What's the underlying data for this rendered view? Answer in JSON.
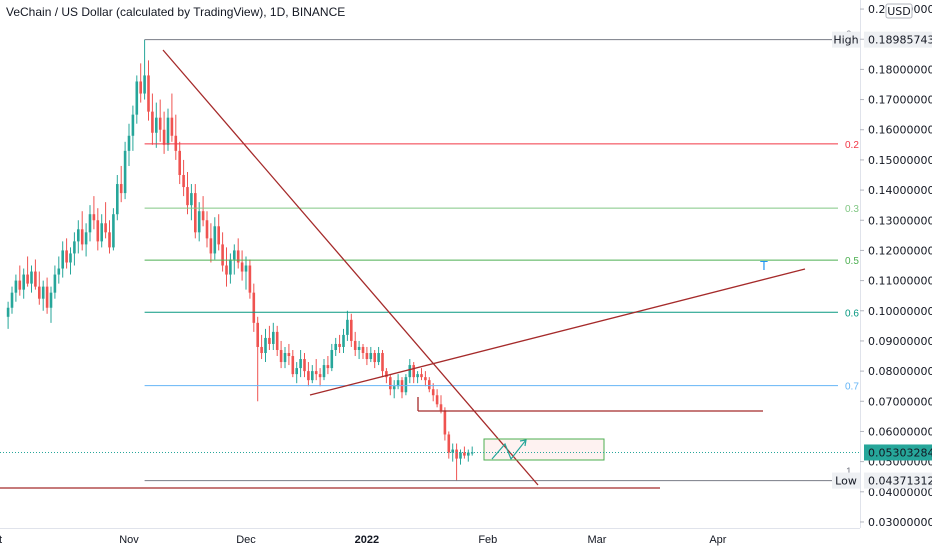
{
  "chart_data": {
    "type": "candlestick",
    "title": "VeChain / US Dollar (calculated by TradingView), 1D, BINANCE",
    "currency": "USD",
    "ylim": [
      0.028,
      0.203
    ],
    "y_ticks": [
      "0.20000000",
      "0.19000000",
      "0.18000000",
      "0.17000000",
      "0.16000000",
      "0.15000000",
      "0.14000000",
      "0.13000000",
      "0.12000000",
      "0.11000000",
      "0.10000000",
      "0.09000000",
      "0.08000000",
      "0.07000000",
      "0.06000000",
      "0.05000000",
      "0.04000000",
      "0.03000000"
    ],
    "x_ticks": [
      "Oct",
      "Nov",
      "Dec",
      "2022",
      "Feb",
      "Mar",
      "Apr"
    ],
    "bold_x_ticks": [
      "2022"
    ],
    "colors": {
      "up": "#26a69a",
      "down": "#ef5350",
      "trend": "#a52a2a",
      "last_price": "#26a69a"
    },
    "high_label": "High",
    "high_value": "0.18985743",
    "low_label": "Low",
    "low_value": "0.04371312",
    "last_price_value": "0.05303284",
    "fib_levels": [
      {
        "label": "0",
        "price": 0.18985743,
        "color": "#787b86"
      },
      {
        "label": "0.2",
        "price": 0.1553,
        "color": "#f23645"
      },
      {
        "label": "0.3",
        "price": 0.134,
        "color": "#81c784"
      },
      {
        "label": "0.5",
        "price": 0.1168,
        "color": "#4caf50"
      },
      {
        "label": "0.6",
        "price": 0.0995,
        "color": "#089981"
      },
      {
        "label": "0.7",
        "price": 0.0752,
        "color": "#64b5f6"
      },
      {
        "label": "1",
        "price": 0.04371312,
        "color": "#787b86"
      }
    ],
    "annotation_T": "T",
    "candles": [
      {
        "date": "2021-10-01",
        "o": 0.098,
        "h": 0.103,
        "l": 0.094,
        "c": 0.101
      },
      {
        "date": "2021-10-02",
        "o": 0.101,
        "h": 0.108,
        "l": 0.099,
        "c": 0.106
      },
      {
        "date": "2021-10-03",
        "o": 0.106,
        "h": 0.112,
        "l": 0.103,
        "c": 0.11
      },
      {
        "date": "2021-10-04",
        "o": 0.11,
        "h": 0.115,
        "l": 0.105,
        "c": 0.107
      },
      {
        "date": "2021-10-05",
        "o": 0.107,
        "h": 0.114,
        "l": 0.104,
        "c": 0.112
      },
      {
        "date": "2021-10-06",
        "o": 0.112,
        "h": 0.118,
        "l": 0.108,
        "c": 0.109
      },
      {
        "date": "2021-10-07",
        "o": 0.109,
        "h": 0.115,
        "l": 0.106,
        "c": 0.113
      },
      {
        "date": "2021-10-08",
        "o": 0.113,
        "h": 0.117,
        "l": 0.107,
        "c": 0.108
      },
      {
        "date": "2021-10-09",
        "o": 0.108,
        "h": 0.113,
        "l": 0.102,
        "c": 0.104
      },
      {
        "date": "2021-10-10",
        "o": 0.104,
        "h": 0.11,
        "l": 0.1,
        "c": 0.108
      },
      {
        "date": "2021-10-11",
        "o": 0.108,
        "h": 0.111,
        "l": 0.099,
        "c": 0.101
      },
      {
        "date": "2021-10-12",
        "o": 0.101,
        "h": 0.108,
        "l": 0.096,
        "c": 0.106
      },
      {
        "date": "2021-10-13",
        "o": 0.106,
        "h": 0.115,
        "l": 0.104,
        "c": 0.112
      },
      {
        "date": "2021-10-14",
        "o": 0.112,
        "h": 0.118,
        "l": 0.109,
        "c": 0.114
      },
      {
        "date": "2021-10-15",
        "o": 0.114,
        "h": 0.123,
        "l": 0.111,
        "c": 0.12
      },
      {
        "date": "2021-10-16",
        "o": 0.12,
        "h": 0.124,
        "l": 0.114,
        "c": 0.116
      },
      {
        "date": "2021-10-17",
        "o": 0.116,
        "h": 0.121,
        "l": 0.112,
        "c": 0.119
      },
      {
        "date": "2021-10-18",
        "o": 0.119,
        "h": 0.126,
        "l": 0.115,
        "c": 0.123
      },
      {
        "date": "2021-10-19",
        "o": 0.123,
        "h": 0.13,
        "l": 0.119,
        "c": 0.127
      },
      {
        "date": "2021-10-20",
        "o": 0.127,
        "h": 0.133,
        "l": 0.12,
        "c": 0.122
      },
      {
        "date": "2021-10-21",
        "o": 0.122,
        "h": 0.129,
        "l": 0.118,
        "c": 0.126
      },
      {
        "date": "2021-10-22",
        "o": 0.126,
        "h": 0.135,
        "l": 0.123,
        "c": 0.132
      },
      {
        "date": "2021-10-23",
        "o": 0.132,
        "h": 0.138,
        "l": 0.127,
        "c": 0.13
      },
      {
        "date": "2021-10-24",
        "o": 0.13,
        "h": 0.134,
        "l": 0.12,
        "c": 0.123
      },
      {
        "date": "2021-10-25",
        "o": 0.123,
        "h": 0.132,
        "l": 0.121,
        "c": 0.129
      },
      {
        "date": "2021-10-26",
        "o": 0.129,
        "h": 0.136,
        "l": 0.124,
        "c": 0.126
      },
      {
        "date": "2021-10-27",
        "o": 0.126,
        "h": 0.13,
        "l": 0.119,
        "c": 0.121
      },
      {
        "date": "2021-10-28",
        "o": 0.121,
        "h": 0.134,
        "l": 0.12,
        "c": 0.132
      },
      {
        "date": "2021-10-29",
        "o": 0.132,
        "h": 0.145,
        "l": 0.13,
        "c": 0.142
      },
      {
        "date": "2021-10-30",
        "o": 0.142,
        "h": 0.148,
        "l": 0.136,
        "c": 0.139
      },
      {
        "date": "2021-10-31",
        "o": 0.139,
        "h": 0.156,
        "l": 0.137,
        "c": 0.153
      },
      {
        "date": "2021-11-01",
        "o": 0.153,
        "h": 0.162,
        "l": 0.148,
        "c": 0.158
      },
      {
        "date": "2021-11-02",
        "o": 0.158,
        "h": 0.168,
        "l": 0.153,
        "c": 0.165
      },
      {
        "date": "2021-11-03",
        "o": 0.165,
        "h": 0.178,
        "l": 0.162,
        "c": 0.176
      },
      {
        "date": "2021-11-04",
        "o": 0.176,
        "h": 0.182,
        "l": 0.169,
        "c": 0.172
      },
      {
        "date": "2021-11-05",
        "o": 0.172,
        "h": 0.18985743,
        "l": 0.17,
        "c": 0.178
      },
      {
        "date": "2021-11-06",
        "o": 0.178,
        "h": 0.183,
        "l": 0.163,
        "c": 0.166
      },
      {
        "date": "2021-11-07",
        "o": 0.166,
        "h": 0.172,
        "l": 0.155,
        "c": 0.159
      },
      {
        "date": "2021-11-08",
        "o": 0.159,
        "h": 0.169,
        "l": 0.154,
        "c": 0.164
      },
      {
        "date": "2021-11-09",
        "o": 0.164,
        "h": 0.17,
        "l": 0.156,
        "c": 0.16
      },
      {
        "date": "2021-11-10",
        "o": 0.16,
        "h": 0.166,
        "l": 0.152,
        "c": 0.155
      },
      {
        "date": "2021-11-11",
        "o": 0.155,
        "h": 0.167,
        "l": 0.153,
        "c": 0.164
      },
      {
        "date": "2021-11-12",
        "o": 0.164,
        "h": 0.172,
        "l": 0.156,
        "c": 0.158
      },
      {
        "date": "2021-11-13",
        "o": 0.158,
        "h": 0.165,
        "l": 0.15,
        "c": 0.153
      },
      {
        "date": "2021-11-14",
        "o": 0.153,
        "h": 0.156,
        "l": 0.142,
        "c": 0.145
      },
      {
        "date": "2021-11-15",
        "o": 0.145,
        "h": 0.15,
        "l": 0.138,
        "c": 0.141
      },
      {
        "date": "2021-11-16",
        "o": 0.141,
        "h": 0.146,
        "l": 0.132,
        "c": 0.135
      },
      {
        "date": "2021-11-17",
        "o": 0.135,
        "h": 0.142,
        "l": 0.13,
        "c": 0.139
      },
      {
        "date": "2021-11-18",
        "o": 0.139,
        "h": 0.142,
        "l": 0.124,
        "c": 0.126
      },
      {
        "date": "2021-11-19",
        "o": 0.126,
        "h": 0.136,
        "l": 0.123,
        "c": 0.133
      },
      {
        "date": "2021-11-20",
        "o": 0.133,
        "h": 0.138,
        "l": 0.128,
        "c": 0.13
      },
      {
        "date": "2021-11-21",
        "o": 0.13,
        "h": 0.133,
        "l": 0.121,
        "c": 0.124
      },
      {
        "date": "2021-11-22",
        "o": 0.124,
        "h": 0.129,
        "l": 0.116,
        "c": 0.119
      },
      {
        "date": "2021-11-23",
        "o": 0.119,
        "h": 0.131,
        "l": 0.117,
        "c": 0.128
      },
      {
        "date": "2021-11-24",
        "o": 0.128,
        "h": 0.132,
        "l": 0.12,
        "c": 0.122
      },
      {
        "date": "2021-11-25",
        "o": 0.122,
        "h": 0.126,
        "l": 0.113,
        "c": 0.115
      },
      {
        "date": "2021-11-26",
        "o": 0.115,
        "h": 0.121,
        "l": 0.108,
        "c": 0.112
      },
      {
        "date": "2021-11-27",
        "o": 0.112,
        "h": 0.119,
        "l": 0.109,
        "c": 0.117
      },
      {
        "date": "2021-11-28",
        "o": 0.117,
        "h": 0.122,
        "l": 0.112,
        "c": 0.12
      },
      {
        "date": "2021-11-29",
        "o": 0.12,
        "h": 0.124,
        "l": 0.114,
        "c": 0.116
      },
      {
        "date": "2021-11-30",
        "o": 0.116,
        "h": 0.12,
        "l": 0.11,
        "c": 0.113
      },
      {
        "date": "2021-12-01",
        "o": 0.113,
        "h": 0.118,
        "l": 0.107,
        "c": 0.115
      },
      {
        "date": "2021-12-02",
        "o": 0.115,
        "h": 0.117,
        "l": 0.104,
        "c": 0.106
      },
      {
        "date": "2021-12-03",
        "o": 0.106,
        "h": 0.109,
        "l": 0.093,
        "c": 0.096
      },
      {
        "date": "2021-12-04",
        "o": 0.096,
        "h": 0.098,
        "l": 0.07,
        "c": 0.088
      },
      {
        "date": "2021-12-05",
        "o": 0.088,
        "h": 0.092,
        "l": 0.084,
        "c": 0.086
      },
      {
        "date": "2021-12-06",
        "o": 0.086,
        "h": 0.094,
        "l": 0.083,
        "c": 0.091
      },
      {
        "date": "2021-12-07",
        "o": 0.091,
        "h": 0.095,
        "l": 0.087,
        "c": 0.089
      },
      {
        "date": "2021-12-08",
        "o": 0.089,
        "h": 0.096,
        "l": 0.087,
        "c": 0.093
      },
      {
        "date": "2021-12-09",
        "o": 0.093,
        "h": 0.095,
        "l": 0.085,
        "c": 0.087
      },
      {
        "date": "2021-12-10",
        "o": 0.087,
        "h": 0.09,
        "l": 0.081,
        "c": 0.083
      },
      {
        "date": "2021-12-11",
        "o": 0.083,
        "h": 0.088,
        "l": 0.081,
        "c": 0.086
      },
      {
        "date": "2021-12-12",
        "o": 0.086,
        "h": 0.089,
        "l": 0.082,
        "c": 0.085
      },
      {
        "date": "2021-12-13",
        "o": 0.085,
        "h": 0.087,
        "l": 0.078,
        "c": 0.079
      },
      {
        "date": "2021-12-14",
        "o": 0.079,
        "h": 0.083,
        "l": 0.076,
        "c": 0.081
      },
      {
        "date": "2021-12-15",
        "o": 0.081,
        "h": 0.087,
        "l": 0.078,
        "c": 0.084
      },
      {
        "date": "2021-12-16",
        "o": 0.084,
        "h": 0.086,
        "l": 0.078,
        "c": 0.08
      },
      {
        "date": "2021-12-17",
        "o": 0.08,
        "h": 0.083,
        "l": 0.075,
        "c": 0.077
      },
      {
        "date": "2021-12-18",
        "o": 0.077,
        "h": 0.082,
        "l": 0.076,
        "c": 0.08
      },
      {
        "date": "2021-12-19",
        "o": 0.08,
        "h": 0.084,
        "l": 0.077,
        "c": 0.079
      },
      {
        "date": "2021-12-20",
        "o": 0.079,
        "h": 0.081,
        "l": 0.075,
        "c": 0.078
      },
      {
        "date": "2021-12-21",
        "o": 0.078,
        "h": 0.084,
        "l": 0.077,
        "c": 0.082
      },
      {
        "date": "2021-12-22",
        "o": 0.082,
        "h": 0.085,
        "l": 0.079,
        "c": 0.081
      },
      {
        "date": "2021-12-23",
        "o": 0.081,
        "h": 0.089,
        "l": 0.08,
        "c": 0.087
      },
      {
        "date": "2021-12-24",
        "o": 0.087,
        "h": 0.091,
        "l": 0.085,
        "c": 0.089
      },
      {
        "date": "2021-12-25",
        "o": 0.089,
        "h": 0.092,
        "l": 0.086,
        "c": 0.088
      },
      {
        "date": "2021-12-26",
        "o": 0.088,
        "h": 0.094,
        "l": 0.086,
        "c": 0.092
      },
      {
        "date": "2021-12-27",
        "o": 0.092,
        "h": 0.1,
        "l": 0.09,
        "c": 0.097
      },
      {
        "date": "2021-12-28",
        "o": 0.097,
        "h": 0.099,
        "l": 0.088,
        "c": 0.09
      },
      {
        "date": "2021-12-29",
        "o": 0.09,
        "h": 0.093,
        "l": 0.085,
        "c": 0.087
      },
      {
        "date": "2021-12-30",
        "o": 0.087,
        "h": 0.09,
        "l": 0.084,
        "c": 0.088
      },
      {
        "date": "2021-12-31",
        "o": 0.088,
        "h": 0.089,
        "l": 0.084,
        "c": 0.086
      },
      {
        "date": "2022-01-01",
        "o": 0.086,
        "h": 0.088,
        "l": 0.082,
        "c": 0.084
      },
      {
        "date": "2022-01-02",
        "o": 0.084,
        "h": 0.088,
        "l": 0.083,
        "c": 0.086
      },
      {
        "date": "2022-01-03",
        "o": 0.086,
        "h": 0.087,
        "l": 0.081,
        "c": 0.083
      },
      {
        "date": "2022-01-04",
        "o": 0.083,
        "h": 0.088,
        "l": 0.082,
        "c": 0.086
      },
      {
        "date": "2022-01-05",
        "o": 0.086,
        "h": 0.087,
        "l": 0.078,
        "c": 0.08
      },
      {
        "date": "2022-01-06",
        "o": 0.08,
        "h": 0.081,
        "l": 0.076,
        "c": 0.078
      },
      {
        "date": "2022-01-07",
        "o": 0.078,
        "h": 0.079,
        "l": 0.072,
        "c": 0.074
      },
      {
        "date": "2022-01-08",
        "o": 0.074,
        "h": 0.077,
        "l": 0.071,
        "c": 0.075
      },
      {
        "date": "2022-01-09",
        "o": 0.075,
        "h": 0.079,
        "l": 0.074,
        "c": 0.077
      },
      {
        "date": "2022-01-10",
        "o": 0.077,
        "h": 0.078,
        "l": 0.071,
        "c": 0.073
      },
      {
        "date": "2022-01-11",
        "o": 0.073,
        "h": 0.079,
        "l": 0.072,
        "c": 0.078
      },
      {
        "date": "2022-01-12",
        "o": 0.078,
        "h": 0.084,
        "l": 0.076,
        "c": 0.082
      },
      {
        "date": "2022-01-13",
        "o": 0.082,
        "h": 0.083,
        "l": 0.076,
        "c": 0.078
      },
      {
        "date": "2022-01-14",
        "o": 0.078,
        "h": 0.08,
        "l": 0.076,
        "c": 0.079
      },
      {
        "date": "2022-01-15",
        "o": 0.079,
        "h": 0.081,
        "l": 0.077,
        "c": 0.078
      },
      {
        "date": "2022-01-16",
        "o": 0.078,
        "h": 0.08,
        "l": 0.075,
        "c": 0.077
      },
      {
        "date": "2022-01-17",
        "o": 0.077,
        "h": 0.078,
        "l": 0.073,
        "c": 0.074
      },
      {
        "date": "2022-01-18",
        "o": 0.074,
        "h": 0.076,
        "l": 0.07,
        "c": 0.072
      },
      {
        "date": "2022-01-19",
        "o": 0.072,
        "h": 0.074,
        "l": 0.068,
        "c": 0.069
      },
      {
        "date": "2022-01-20",
        "o": 0.069,
        "h": 0.072,
        "l": 0.066,
        "c": 0.067
      },
      {
        "date": "2022-01-21",
        "o": 0.067,
        "h": 0.068,
        "l": 0.057,
        "c": 0.059
      },
      {
        "date": "2022-01-22",
        "o": 0.059,
        "h": 0.06,
        "l": 0.051,
        "c": 0.053
      },
      {
        "date": "2022-01-23",
        "o": 0.053,
        "h": 0.056,
        "l": 0.05,
        "c": 0.054
      },
      {
        "date": "2022-01-24",
        "o": 0.054,
        "h": 0.056,
        "l": 0.04371312,
        "c": 0.051
      },
      {
        "date": "2022-01-25",
        "o": 0.051,
        "h": 0.054,
        "l": 0.049,
        "c": 0.053
      },
      {
        "date": "2022-01-26",
        "o": 0.053,
        "h": 0.055,
        "l": 0.051,
        "c": 0.052
      },
      {
        "date": "2022-01-27",
        "o": 0.052,
        "h": 0.054,
        "l": 0.05,
        "c": 0.053
      },
      {
        "date": "2022-01-28",
        "o": 0.053,
        "h": 0.055,
        "l": 0.052,
        "c": 0.05303284
      }
    ]
  }
}
